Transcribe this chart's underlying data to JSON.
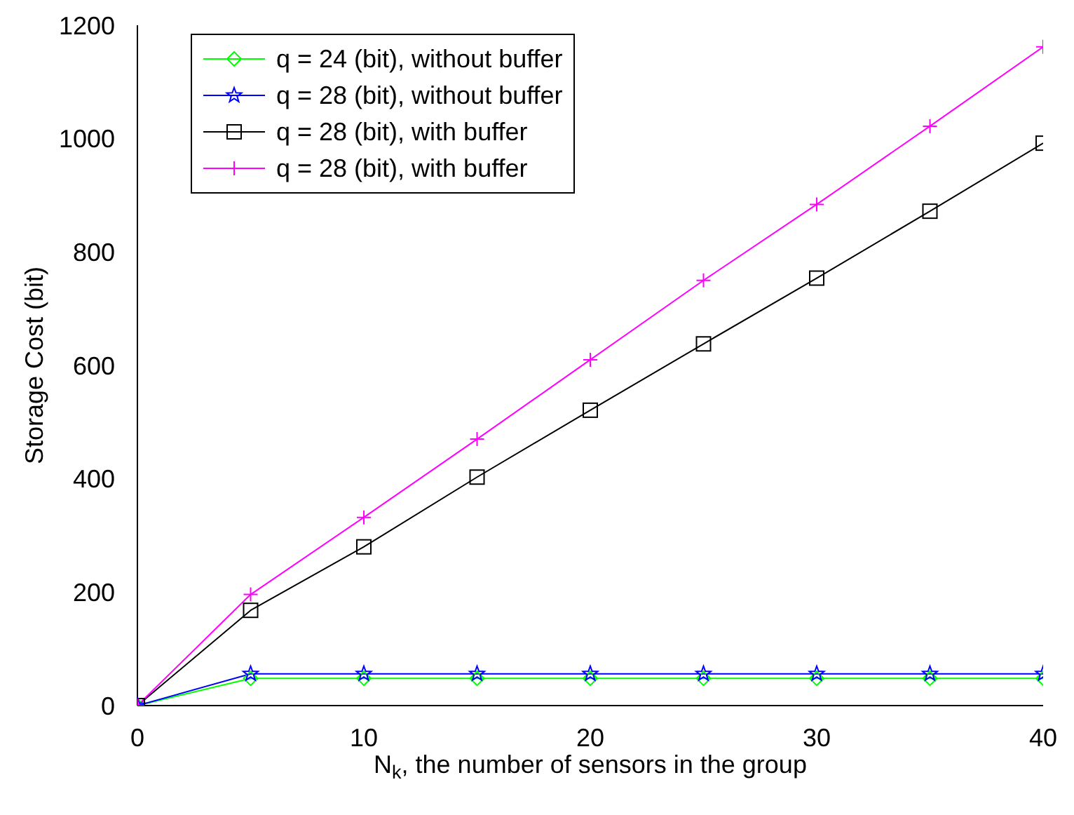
{
  "chart_data": {
    "type": "line",
    "xlabel": "N$_{k}$, the number of sensors in the group",
    "ylabel": "Storage Cost (bit)",
    "x": [
      0,
      5,
      10,
      15,
      20,
      25,
      30,
      35,
      40
    ],
    "series": [
      {
        "name": "q = 24 (bit), without buffer",
        "color": "#00ff00",
        "marker": "diamond",
        "values": [
          0,
          48,
          48,
          48,
          48,
          48,
          48,
          48,
          48
        ]
      },
      {
        "name": "q = 28 (bit), without buffer",
        "color": "#0000ff",
        "marker": "star",
        "values": [
          0,
          56,
          56,
          56,
          56,
          56,
          56,
          56,
          56
        ]
      },
      {
        "name": "q = 28 (bit), with buffer",
        "color": "#000000",
        "marker": "square",
        "values": [
          0,
          168,
          280,
          403,
          521,
          638,
          754,
          872,
          992
        ]
      },
      {
        "name": "q = 28 (bit), with buffer",
        "color": "#ff00ff",
        "marker": "cross",
        "values": [
          0,
          196,
          332,
          470,
          610,
          750,
          884,
          1022,
          1162
        ]
      }
    ],
    "xlim": [
      0,
      40
    ],
    "xticks": [
      0,
      10,
      20,
      30,
      40
    ],
    "ylim": [
      0,
      1200
    ],
    "yticks": [
      0,
      200,
      400,
      600,
      800,
      1000,
      1200
    ],
    "grid": false,
    "legend": "top left",
    "line_style": "solid"
  }
}
